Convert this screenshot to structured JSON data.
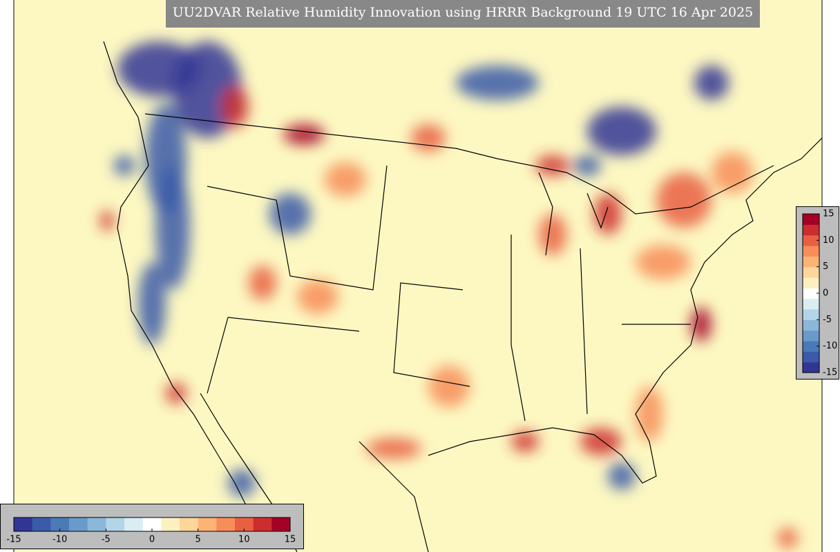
{
  "title": "UU2DVAR Relative Humidity Innovation using HRRR Background 19 UTC 16 Apr 2025",
  "colorbars": [
    {
      "lim": [
        -15,
        15
      ],
      "ticks": [
        -15,
        -10,
        -5,
        0,
        5,
        10,
        15
      ]
    },
    {
      "lim": [
        -15,
        15
      ],
      "ticks": [
        -15,
        -10,
        -5,
        0,
        5,
        10,
        15
      ]
    }
  ],
  "colors": [
    "#313695",
    "#3a5ba8",
    "#4a7bb7",
    "#6a9ac9",
    "#8db7d9",
    "#b3d5e8",
    "#d9edf3",
    "#ffffff",
    "#fdf0c0",
    "#fdd699",
    "#fcb474",
    "#f78d59",
    "#e85f42",
    "#cc2d2e",
    "#a50026"
  ]
}
